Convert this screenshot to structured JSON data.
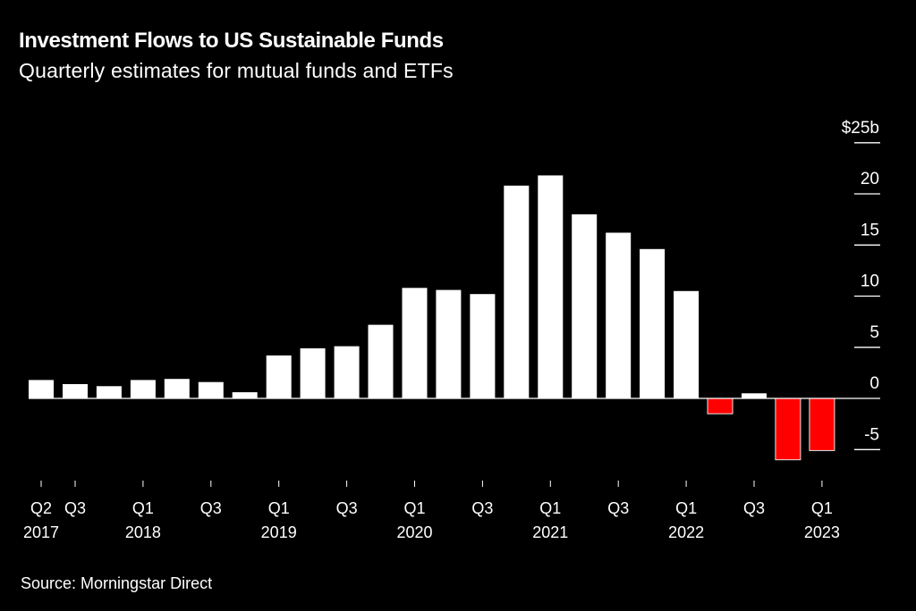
{
  "header": {
    "title": "Investment Flows to US Sustainable Funds",
    "subtitle": "Quarterly estimates for mutual funds and ETFs"
  },
  "footer": {
    "source": "Source: Morningstar Direct"
  },
  "colors": {
    "background": "#000000",
    "positive": "#ffffff",
    "negative": "#ff0000",
    "axis": "#ffffff"
  },
  "chart_data": {
    "type": "bar",
    "title": "Investment Flows to US Sustainable Funds",
    "subtitle": "Quarterly estimates for mutual funds and ETFs",
    "xlabel": "",
    "ylabel": "",
    "unit": "$ billions",
    "categories": [
      "Q2 2017",
      "Q3 2017",
      "Q4 2017",
      "Q1 2018",
      "Q2 2018",
      "Q3 2018",
      "Q4 2018",
      "Q1 2019",
      "Q2 2019",
      "Q3 2019",
      "Q4 2019",
      "Q1 2020",
      "Q2 2020",
      "Q3 2020",
      "Q4 2020",
      "Q1 2021",
      "Q2 2021",
      "Q3 2021",
      "Q4 2021",
      "Q1 2022",
      "Q2 2022",
      "Q3 2022",
      "Q4 2022",
      "Q1 2023"
    ],
    "values": [
      1.8,
      1.4,
      1.2,
      1.8,
      1.9,
      1.6,
      0.6,
      4.2,
      4.9,
      5.1,
      7.2,
      10.8,
      10.6,
      10.2,
      20.8,
      21.8,
      18.0,
      16.2,
      14.6,
      10.5,
      -1.5,
      0.5,
      -6.0,
      -5.1
    ],
    "ylim": [
      -6,
      25
    ],
    "y_ticks": [
      {
        "value": 25,
        "label": "$25b"
      },
      {
        "value": 20,
        "label": "20"
      },
      {
        "value": 15,
        "label": "15"
      },
      {
        "value": 10,
        "label": "10"
      },
      {
        "value": 5,
        "label": "5"
      },
      {
        "value": 0,
        "label": "0"
      },
      {
        "value": -5,
        "label": "-5"
      }
    ],
    "x_ticks": [
      {
        "index": 0,
        "quarter": "Q2",
        "year": "2017"
      },
      {
        "index": 1,
        "quarter": "Q3",
        "year": ""
      },
      {
        "index": 3,
        "quarter": "Q1",
        "year": "2018"
      },
      {
        "index": 5,
        "quarter": "Q3",
        "year": ""
      },
      {
        "index": 7,
        "quarter": "Q1",
        "year": "2019"
      },
      {
        "index": 9,
        "quarter": "Q3",
        "year": ""
      },
      {
        "index": 11,
        "quarter": "Q1",
        "year": "2020"
      },
      {
        "index": 13,
        "quarter": "Q3",
        "year": ""
      },
      {
        "index": 15,
        "quarter": "Q1",
        "year": "2021"
      },
      {
        "index": 17,
        "quarter": "Q3",
        "year": ""
      },
      {
        "index": 19,
        "quarter": "Q1",
        "year": "2022"
      },
      {
        "index": 21,
        "quarter": "Q3",
        "year": ""
      },
      {
        "index": 23,
        "quarter": "Q1",
        "year": "2023"
      }
    ],
    "y_axis_position": "right",
    "grid": false,
    "legend": "none",
    "negative_color": "red",
    "positive_color": "white"
  }
}
